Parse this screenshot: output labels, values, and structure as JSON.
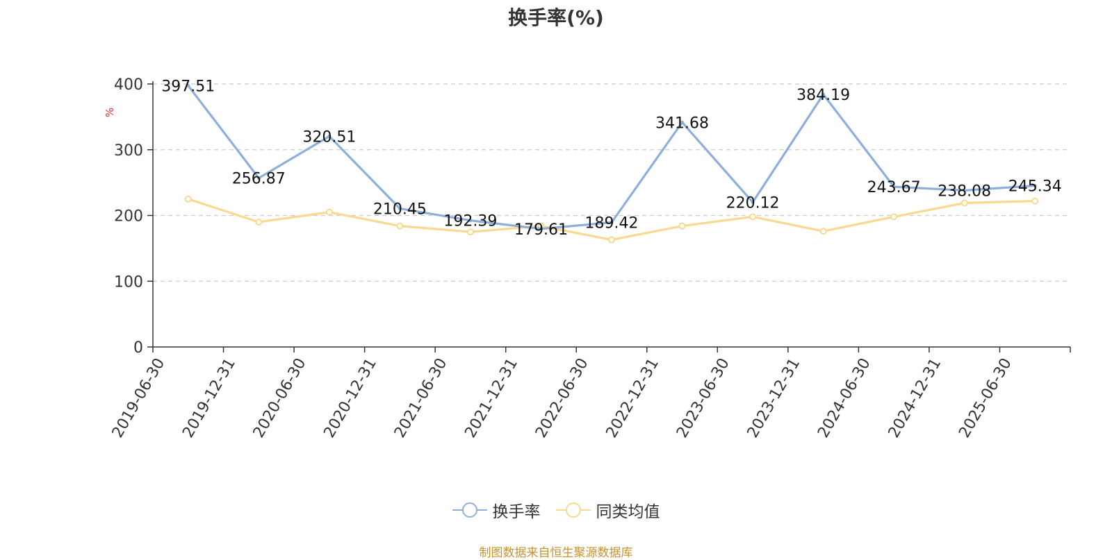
{
  "chart_data": {
    "type": "line",
    "title": "换手率(%)",
    "ylabel": "%",
    "ylim": [
      0,
      400
    ],
    "yticks": [
      0,
      100,
      200,
      300,
      400
    ],
    "grid": true,
    "legend_position": "bottom-center",
    "categories": [
      "2019-06-30",
      "2019-12-31",
      "2020-06-30",
      "2020-12-31",
      "2021-06-30",
      "2021-12-31",
      "2022-06-30",
      "2022-12-31",
      "2023-06-30",
      "2023-12-31",
      "2024-06-30",
      "2024-12-31",
      "2025-06-30"
    ],
    "series": [
      {
        "name": "换手率",
        "color": "#8eaedb",
        "values": [
          397.51,
          256.87,
          320.51,
          210.45,
          192.39,
          179.61,
          189.42,
          341.68,
          220.12,
          384.19,
          243.67,
          238.08,
          245.34
        ],
        "labels": [
          "397.51",
          "256.87",
          "320.51",
          "210.45",
          "192.39",
          "179.61",
          "189.42",
          "341.68",
          "220.12",
          "384.19",
          "243.67",
          "238.08",
          "245.34"
        ]
      },
      {
        "name": "同类均值",
        "color": "#fbd890",
        "values": [
          225,
          190,
          205,
          184,
          175,
          184,
          163,
          184,
          198,
          176,
          198,
          219,
          222
        ]
      }
    ],
    "source": "制图数据来自恒生聚源数据库"
  }
}
